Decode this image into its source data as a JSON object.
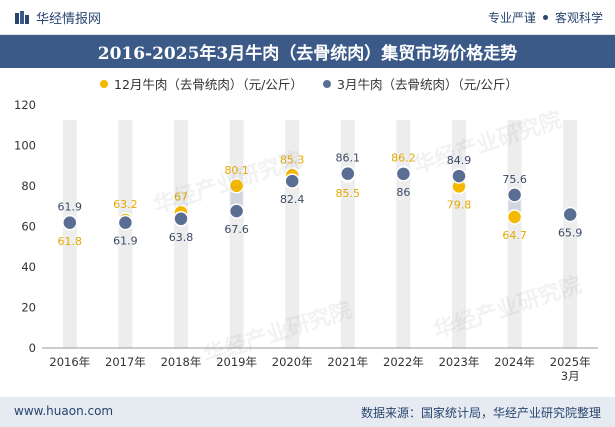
{
  "header": {
    "brand": "华经情报网",
    "tagline_left": "专业严谨",
    "tagline_right": "客观科学"
  },
  "footer": {
    "website": "www.huaon.com",
    "source": "数据来源：国家统计局，华经产业研究院整理"
  },
  "watermark_text": "华经产业研究院",
  "colors": {
    "title_bg": "#3c5a88",
    "series_12": "#f5b800",
    "series_3": "#5a6e94",
    "bar": "#ededed",
    "accent": "#27456f"
  },
  "chart_data": {
    "type": "scatter",
    "title": "2016-2025年3月牛肉（去骨统肉）集贸市场价格走势",
    "categories": [
      "2016年",
      "2017年",
      "2018年",
      "2019年",
      "2020年",
      "2021年",
      "2022年",
      "2023年",
      "2024年",
      "2025年\n3月"
    ],
    "ylim": [
      0,
      120
    ],
    "yticks": [
      0,
      20,
      40,
      60,
      80,
      100,
      120
    ],
    "legend_position": "top",
    "series": [
      {
        "name": "12月牛肉（去骨统肉）（元/公斤）",
        "values": [
          61.8,
          63.2,
          67,
          80.1,
          85.3,
          85.5,
          86.2,
          79.8,
          64.7,
          null
        ],
        "labels": [
          "61.8",
          "63.2",
          "67",
          "80.1",
          "85.3",
          "85.5",
          "86.2",
          "79.8",
          "64.7",
          ""
        ]
      },
      {
        "name": "3月牛肉（去骨统肉）（元/公斤）",
        "values": [
          61.9,
          61.9,
          63.8,
          67.6,
          82.4,
          86.1,
          86,
          84.9,
          75.6,
          65.9
        ],
        "labels": [
          "61.9",
          "61.9",
          "63.8",
          "67.6",
          "82.4",
          "86.1",
          "86",
          "84.9",
          "75.6",
          "65.9"
        ]
      }
    ]
  }
}
